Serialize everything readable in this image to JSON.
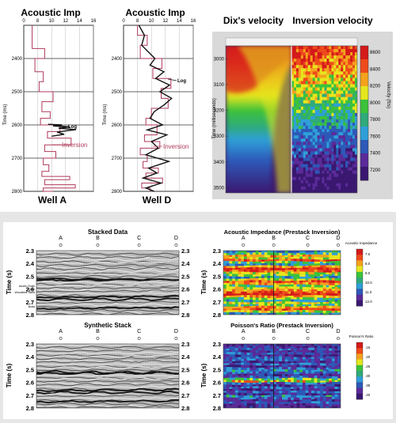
{
  "wells": [
    {
      "title": "Acoustic Imp",
      "label": "Well A",
      "xticks": [
        0,
        8,
        10,
        12,
        14,
        16
      ],
      "yticks": [
        2400,
        2500,
        2600,
        2700,
        2800
      ],
      "ylabel": "Time (ms)",
      "annotations": [
        "Log",
        "Inversion"
      ]
    },
    {
      "title": "Acoustic Imp",
      "label": "Well D",
      "xticks": [
        0,
        8,
        10,
        12,
        14,
        16
      ],
      "yticks": [
        2400,
        2500,
        2600,
        2700,
        2800
      ],
      "ylabel": "Time (ms)",
      "annotations": [
        "Log",
        "Inversion"
      ]
    }
  ],
  "velocity_panel": {
    "title_left": "Dix's velocity",
    "title_right": "Inversion velocity",
    "yticks": [
      3000,
      3100,
      3200,
      3300,
      3400,
      3500
    ],
    "ylabel": "Time (milliseconds)",
    "scale_ticks": [
      8600,
      8400,
      8200,
      8000,
      7800,
      7600,
      7400,
      7200
    ],
    "scale_label": "Velocity (ft/s)"
  },
  "seismic_panels": [
    {
      "title": "Stacked Data",
      "wells": [
        "A",
        "B",
        "C",
        "D"
      ],
      "yticks_left": [
        "2.3",
        "2.4",
        "2.5",
        "2.6",
        "2.7",
        "2.8"
      ],
      "yticks_right": [
        "2.3",
        "2.4",
        "2.5",
        "2.6",
        "2.7",
        "2.8"
      ],
      "ylabel": "Time (s)",
      "horizons": [
        "Austin Chalk",
        "Shale",
        "Woodbine Sand",
        "Buda"
      ]
    },
    {
      "title": "Acoustic Impedance (Prestack Inversion)",
      "wells": [
        "A",
        "B",
        "C",
        "D"
      ],
      "yticks_left": [
        "2.3",
        "2.4",
        "2.5",
        "2.6",
        "2.7",
        "2.8"
      ],
      "ylabel": "Time (s)",
      "scale_title": "Acoustic Impedance",
      "scale_ticks": [
        "7.0",
        "8.0",
        "9.0",
        "10.0",
        "11.0",
        "12.0"
      ]
    },
    {
      "title": "Synthetic Stack",
      "wells": [
        "A",
        "B",
        "C",
        "D"
      ],
      "yticks_left": [
        "2.3",
        "2.4",
        "2.5",
        "2.6",
        "2.7",
        "2.8"
      ],
      "yticks_right": [
        "2.3",
        "2.4",
        "2.5",
        "2.6",
        "2.7",
        "2.8"
      ],
      "ylabel": "Time (s)"
    },
    {
      "title": "Poisson's Ratio (Prestack Inversion)",
      "wells": [
        "A",
        "B",
        "C",
        "D"
      ],
      "yticks_left": [
        "2.3",
        "2.4",
        "2.5",
        "2.6",
        "2.7",
        "2.8"
      ],
      "ylabel": "Time (s)",
      "scale_title": "Poisson's Ratio",
      "scale_ticks": [
        ".15",
        ".20",
        ".25",
        ".30",
        ".35",
        ".40"
      ]
    }
  ],
  "chart_data": [
    {
      "type": "line",
      "title": "Acoustic Imp",
      "xlabel": "Well A",
      "ylabel": "Time (ms)",
      "xlim": [
        6,
        16
      ],
      "ylim": [
        2300,
        2800
      ],
      "series": [
        {
          "name": "Inversion",
          "color": "#b03a5b",
          "x": [
            7.2,
            7.2,
            9.0,
            9.0,
            7.6,
            7.6,
            8.8,
            8.8,
            8.2,
            8.2,
            10.2,
            10.2,
            8.6,
            8.6,
            9.8,
            9.8,
            8.4,
            8.4,
            11.2,
            11.2,
            9.4,
            9.4,
            12.8,
            12.8,
            9.0,
            9.0,
            10.6,
            10.6,
            8.8,
            8.8,
            9.6,
            9.6,
            8.6,
            8.6,
            12.6,
            12.6,
            9.0,
            9.0,
            13.4,
            13.4,
            8.8,
            8.8,
            10.2,
            10.2,
            9.4,
            9.4
          ],
          "y": [
            2300,
            2370,
            2370,
            2400,
            2400,
            2440,
            2440,
            2470,
            2470,
            2500,
            2500,
            2530,
            2530,
            2560,
            2560,
            2580,
            2580,
            2600,
            2600,
            2620,
            2620,
            2640,
            2640,
            2660,
            2660,
            2680,
            2680,
            2700,
            2700,
            2720,
            2720,
            2740,
            2740,
            2755,
            2755,
            2765,
            2765,
            2780,
            2780,
            2790,
            2790,
            2800,
            2800,
            2810,
            2810,
            2820
          ]
        },
        {
          "name": "Log",
          "color": "#111111",
          "x": [
            9.5,
            11.5,
            10.2,
            12.6,
            11.0,
            13.5,
            12.0,
            10.8,
            11.8,
            10.0
          ],
          "y": [
            2598,
            2600,
            2603,
            2606,
            2610,
            2614,
            2618,
            2622,
            2628,
            2634
          ]
        }
      ]
    },
    {
      "type": "line",
      "title": "Acoustic Imp",
      "xlabel": "Well D",
      "ylabel": "Time (ms)",
      "xlim": [
        6,
        16
      ],
      "ylim": [
        2300,
        2800
      ],
      "series": [
        {
          "name": "Inversion",
          "color": "#b03a5b",
          "x": [
            8.0,
            8.0,
            9.4,
            9.4,
            8.4,
            8.4,
            11.5,
            11.5,
            10.2,
            10.2,
            12.8,
            12.8,
            11.4,
            11.4,
            12.4,
            12.4,
            10.0,
            10.0,
            9.2,
            9.2,
            10.8,
            10.8,
            9.0,
            9.0,
            11.2,
            11.2,
            8.4,
            8.4,
            9.4,
            9.4,
            8.8,
            8.8,
            11.0,
            11.0,
            9.2,
            9.2,
            11.6,
            11.6,
            8.6,
            8.6,
            9.8,
            9.8
          ],
          "y": [
            2300,
            2330,
            2330,
            2360,
            2360,
            2400,
            2400,
            2430,
            2430,
            2460,
            2460,
            2490,
            2490,
            2520,
            2520,
            2550,
            2550,
            2580,
            2580,
            2600,
            2600,
            2630,
            2630,
            2650,
            2650,
            2670,
            2670,
            2690,
            2690,
            2710,
            2710,
            2730,
            2730,
            2745,
            2745,
            2760,
            2760,
            2775,
            2775,
            2790,
            2790,
            2800
          ]
        },
        {
          "name": "Log",
          "color": "#111111",
          "x": [
            8.2,
            9.0,
            8.6,
            10.5,
            9.8,
            11.8,
            10.6,
            12.6,
            11.2,
            12.9,
            11.8,
            10.4,
            9.8,
            11.6,
            9.4,
            12.2,
            10.0,
            11.0,
            9.2,
            12.5,
            9.6,
            10.8,
            8.8,
            11.4,
            9.2,
            10.4
          ],
          "y": [
            2300,
            2330,
            2360,
            2400,
            2420,
            2440,
            2460,
            2480,
            2500,
            2520,
            2540,
            2560,
            2580,
            2600,
            2615,
            2630,
            2650,
            2670,
            2690,
            2710,
            2730,
            2745,
            2760,
            2775,
            2790,
            2800
          ]
        }
      ]
    },
    {
      "type": "heatmap",
      "title": "Dix's velocity / Inversion velocity",
      "ylabel": "Time (milliseconds)",
      "ylim": [
        2950,
        3520
      ],
      "colorbar_label": "Velocity (ft/s)",
      "colorbar_range": [
        7100,
        8700
      ],
      "colors": [
        "#3a1870",
        "#5a2b99",
        "#2d59b8",
        "#2f9fd8",
        "#2faa7a",
        "#3cc23a",
        "#e6e61e",
        "#f4a21c",
        "#ee4a1b",
        "#d41a1a"
      ]
    },
    {
      "type": "heatmap",
      "title": "Stacked Data",
      "ylabel": "Time (s)",
      "ylim": [
        2.3,
        2.8
      ],
      "x_markers": [
        "A",
        "B",
        "C",
        "D"
      ]
    },
    {
      "type": "heatmap",
      "title": "Acoustic Impedance (Prestack Inversion)",
      "ylabel": "Time (s)",
      "ylim": [
        2.3,
        2.8
      ],
      "x_markers": [
        "A",
        "B",
        "C",
        "D"
      ],
      "colorbar_range": [
        7.0,
        12.0
      ]
    },
    {
      "type": "heatmap",
      "title": "Synthetic Stack",
      "ylabel": "Time (s)",
      "ylim": [
        2.3,
        2.8
      ],
      "x_markers": [
        "A",
        "B",
        "C",
        "D"
      ]
    },
    {
      "type": "heatmap",
      "title": "Poisson's Ratio (Prestack Inversion)",
      "ylabel": "Time (s)",
      "ylim": [
        2.3,
        2.8
      ],
      "x_markers": [
        "A",
        "B",
        "C",
        "D"
      ],
      "colorbar_range": [
        0.15,
        0.4
      ]
    }
  ]
}
